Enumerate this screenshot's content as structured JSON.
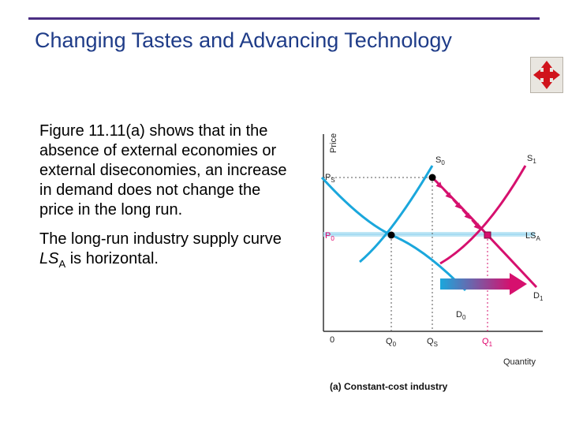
{
  "slide": {
    "title": "Changing Tastes and Advancing Technology",
    "paragraph1": "Figure 11.11(a) shows that in the absence of external economies or external diseconomies, an increase in demand does not change the price in the long run.",
    "paragraph2": {
      "before": "The long-run industry supply curve ",
      "ls": "LS",
      "sub": "A",
      "after": " is horizontal."
    }
  },
  "diagram": {
    "y_axis_label": "Price",
    "x_axis_label": "Quantity",
    "origin_label": "0",
    "caption": "(a) Constant-cost industry",
    "curve_labels": {
      "s0": "S",
      "s0_sub": "0",
      "s1": "S",
      "s1_sub": "1",
      "d0": "D",
      "d0_sub": "0",
      "d1": "D",
      "d1_sub": "1",
      "lsa": "LS",
      "lsa_sub": "A"
    },
    "price_labels": {
      "ps": "P",
      "ps_sub": "S",
      "p0": "P",
      "p0_sub": "0"
    },
    "quantity_labels": {
      "q0": "Q",
      "q0_sub": "0",
      "qs": "Q",
      "qs_sub": "S",
      "q1": "Q",
      "q1_sub": "1"
    },
    "colors": {
      "blue": "#1aa7dc",
      "magenta": "#d6106e",
      "lsa_band": "#bfe6f5",
      "axis": "#333333"
    }
  },
  "icons": {
    "nav": "move-arrows-icon"
  }
}
